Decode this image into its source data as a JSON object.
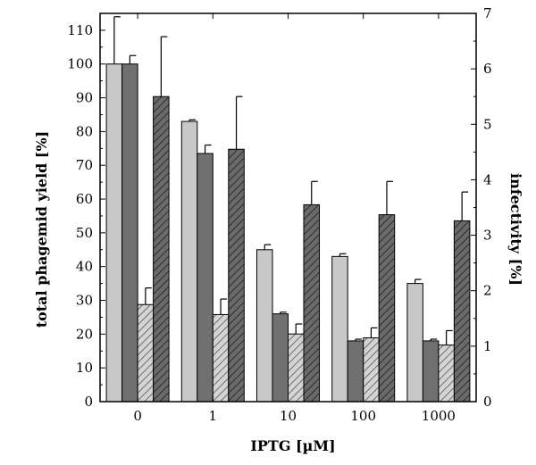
{
  "chart_data": {
    "type": "bar",
    "xlabel": "IPTG [µM]",
    "ylabel_left": "total phagemid yield [%]",
    "ylabel_right": "infectivity [%]",
    "categories": [
      "0",
      "1",
      "10",
      "100",
      "1000"
    ],
    "ylim_left": [
      0,
      115
    ],
    "yticks_left": [
      "0",
      "10",
      "20",
      "30",
      "40",
      "50",
      "60",
      "70",
      "80",
      "90",
      "100",
      "110"
    ],
    "ylim_right": [
      0,
      7
    ],
    "yticks_right": [
      "0",
      "1",
      "2",
      "3",
      "4",
      "5",
      "6",
      "7"
    ],
    "legend": "none",
    "grid": false,
    "series": [
      {
        "axis": "left",
        "fill": "#c8c8c8",
        "hatch": false,
        "values": [
          100,
          83,
          45,
          43,
          35
        ],
        "errors": [
          14,
          0.5,
          1.5,
          0.8,
          1.2
        ]
      },
      {
        "axis": "left",
        "fill": "#707070",
        "hatch": false,
        "values": [
          100,
          73.5,
          26,
          18,
          18
        ],
        "errors": [
          2.5,
          2.5,
          0.5,
          0.5,
          0.5
        ]
      },
      {
        "axis": "right",
        "fill": "#d0d0d0",
        "hatch": true,
        "values": [
          1.75,
          1.57,
          1.22,
          1.15,
          1.02
        ],
        "errors": [
          0.3,
          0.28,
          0.18,
          0.18,
          0.26
        ]
      },
      {
        "axis": "right",
        "fill": "#686868",
        "hatch": true,
        "values": [
          5.5,
          4.55,
          3.55,
          3.37,
          3.26
        ],
        "errors": [
          1.08,
          0.95,
          0.42,
          0.6,
          0.52
        ]
      }
    ]
  }
}
